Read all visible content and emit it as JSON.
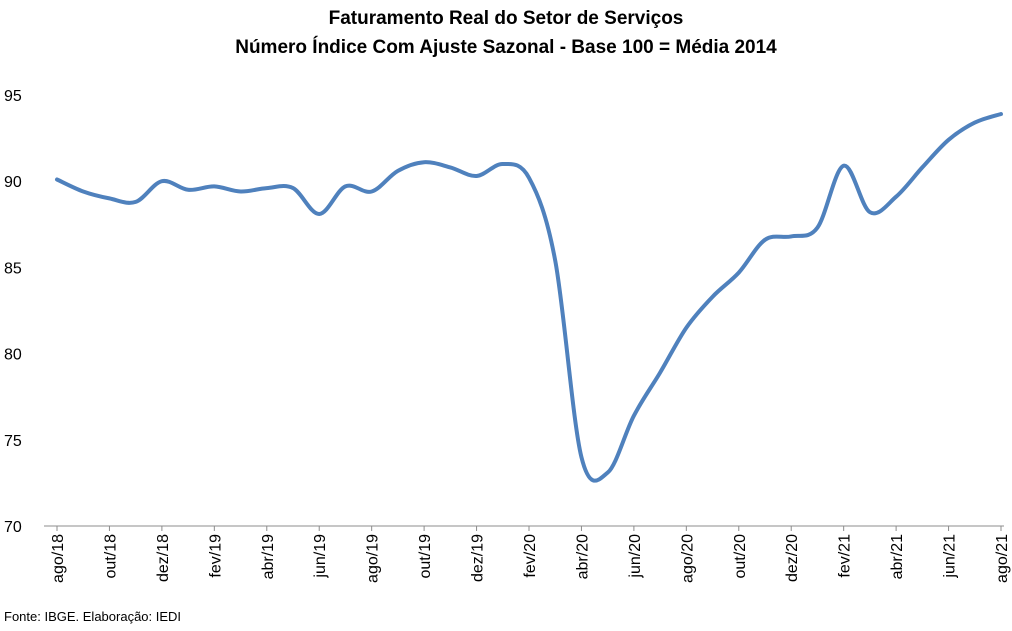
{
  "chart_data": {
    "type": "line",
    "title": "Faturamento Real do Setor de Serviços",
    "subtitle": "Número Índice Com Ajuste Sazonal - Base 100 = Média 2014",
    "xlabel": "",
    "ylabel": "",
    "ylim": [
      70,
      95
    ],
    "yticks": [
      70,
      75,
      80,
      85,
      90,
      95
    ],
    "grid": false,
    "legend": "none",
    "line_color": "#4f81bd",
    "x_labels": [
      "ago/18",
      "out/18",
      "dez/18",
      "fev/19",
      "abr/19",
      "jun/19",
      "ago/19",
      "out/19",
      "dez/19",
      "fev/20",
      "abr/20",
      "jun/20",
      "ago/20",
      "out/20",
      "dez/20",
      "fev/21",
      "abr/21",
      "jun/21",
      "ago/21"
    ],
    "x": [
      "ago/18",
      "set/18",
      "out/18",
      "nov/18",
      "dez/18",
      "jan/19",
      "fev/19",
      "mar/19",
      "abr/19",
      "mai/19",
      "jun/19",
      "jul/19",
      "ago/19",
      "set/19",
      "out/19",
      "nov/19",
      "dez/19",
      "jan/20",
      "fev/20",
      "mar/20",
      "abr/20",
      "mai/20",
      "jun/20",
      "jul/20",
      "ago/20",
      "set/20",
      "out/20",
      "nov/20",
      "dez/20",
      "jan/21",
      "fev/21",
      "mar/21",
      "abr/21",
      "mai/21",
      "jun/21",
      "jul/21",
      "ago/21"
    ],
    "series": [
      {
        "values": [
          90.1,
          89.4,
          89.0,
          88.8,
          90.0,
          89.5,
          89.7,
          89.4,
          89.6,
          89.6,
          88.1,
          89.7,
          89.4,
          90.6,
          91.1,
          90.8,
          90.3,
          91.0,
          90.2,
          85.4,
          74.0,
          73.1,
          76.4,
          78.9,
          81.5,
          83.3,
          84.7,
          86.6,
          86.8,
          87.3,
          90.9,
          88.2,
          89.1,
          90.8,
          92.4,
          93.4,
          93.9
        ]
      }
    ]
  },
  "footer": {
    "source": "Fonte: IBGE. Elaboração: IEDI"
  }
}
